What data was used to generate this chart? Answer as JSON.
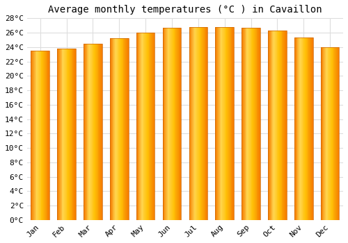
{
  "title": "Average monthly temperatures (°C ) in Cavaillon",
  "months": [
    "Jan",
    "Feb",
    "Mar",
    "Apr",
    "May",
    "Jun",
    "Jul",
    "Aug",
    "Sep",
    "Oct",
    "Nov",
    "Dec"
  ],
  "values": [
    23.5,
    23.8,
    24.5,
    25.2,
    26.0,
    26.7,
    26.8,
    26.8,
    26.7,
    26.3,
    25.3,
    24.0
  ],
  "bar_color_light": "#FFD54F",
  "bar_color_mid": "#FFC107",
  "bar_color_dark": "#F57C00",
  "background_color": "#ffffff",
  "grid_color": "#dddddd",
  "ylim": [
    0,
    28
  ],
  "ytick_step": 2,
  "title_fontsize": 10,
  "tick_fontsize": 8,
  "font_family": "monospace"
}
